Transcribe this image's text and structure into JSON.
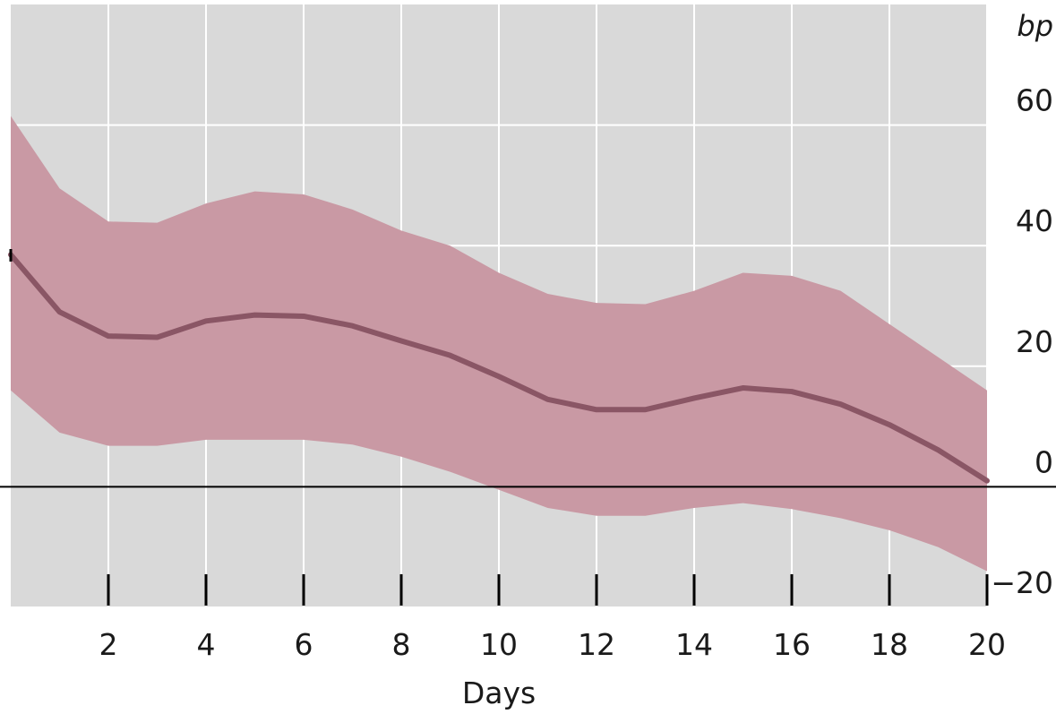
{
  "chart_data": {
    "type": "area",
    "title": "",
    "xlabel": "Days",
    "ylabel": "bp",
    "x": [
      0,
      1,
      2,
      3,
      4,
      5,
      6,
      7,
      8,
      9,
      10,
      11,
      12,
      13,
      14,
      15,
      16,
      17,
      18,
      19,
      20
    ],
    "series": [
      {
        "role": "band_upper",
        "values": [
          61.5,
          49.5,
          44,
          43.8,
          47,
          49,
          48.5,
          46,
          42.5,
          40,
          35.5,
          32,
          30.5,
          30.3,
          32.5,
          35.5,
          35,
          32.5,
          27,
          21.5,
          16
        ]
      },
      {
        "role": "central",
        "values": [
          38.5,
          29,
          25,
          24.8,
          27.5,
          28.5,
          28.3,
          26.7,
          24.2,
          21.8,
          18.3,
          14.5,
          12.8,
          12.8,
          14.7,
          16.4,
          15.8,
          13.7,
          10.3,
          6.1,
          1
        ]
      },
      {
        "role": "band_lower",
        "values": [
          16,
          9,
          6.8,
          6.8,
          7.8,
          7.8,
          7.8,
          7,
          5,
          2.5,
          -0.5,
          -3.5,
          -4.8,
          -4.8,
          -3.5,
          -2.7,
          -3.7,
          -5.2,
          -7.2,
          -10,
          -14
        ]
      }
    ],
    "x_ticks": [
      2,
      4,
      6,
      8,
      10,
      12,
      14,
      16,
      18,
      20
    ],
    "x_tick_labels": [
      "2",
      "4",
      "6",
      "8",
      "10",
      "12",
      "14",
      "16",
      "18",
      "20"
    ],
    "y_ticks": [
      60,
      40,
      20,
      0,
      -20
    ],
    "y_tick_labels": [
      "60",
      "40",
      "20",
      "0",
      "−20"
    ],
    "xlim": [
      0,
      20
    ],
    "ylim": [
      -20,
      80
    ],
    "grid": true,
    "zero_line": true,
    "legend": "none",
    "colors": {
      "background": "#d9d9d9",
      "grid": "#ffffff",
      "band": "#c999a4",
      "line": "#8a5665",
      "zero_line": "#000000"
    }
  }
}
